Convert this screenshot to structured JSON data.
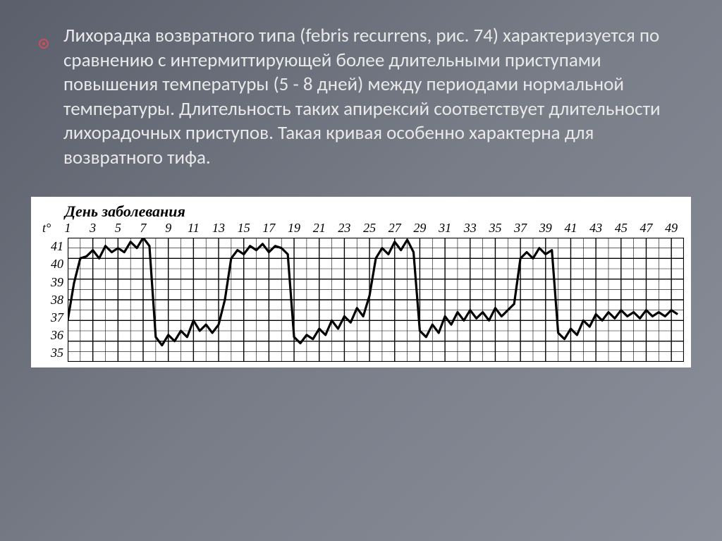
{
  "paragraph": "Лихорадка возвратного типа (febris recurrens, рис. 74) характеризуется по сравнению с интермиттирующей более длительными приступами повышения температуры (5 - 8 дней) между периодами нормальной температуры. Длительность таких апирексий соответствует длительности лихорадочных приступов. Такая кривая особенно характерна для возвратного тифа.",
  "bullet_color": "#c94f60",
  "chart": {
    "title": "День заболевания",
    "t_label": "t°",
    "y_labels": [
      "41",
      "40",
      "39",
      "38",
      "37",
      "36",
      "35"
    ],
    "y_min": 35,
    "y_max": 41,
    "x_labels": [
      "1",
      "3",
      "5",
      "7",
      "9",
      "11",
      "13",
      "15",
      "17",
      "19",
      "21",
      "23",
      "25",
      "27",
      "29",
      "31",
      "33",
      "35",
      "37",
      "39",
      "41",
      "43",
      "45",
      "47",
      "49"
    ],
    "x_min": 1,
    "x_max": 50,
    "grid_color": "#000000",
    "line_color": "#000000",
    "line_width": 3.2,
    "background": "#ffffff",
    "data": [
      [
        1,
        37.0
      ],
      [
        1.5,
        38.8
      ],
      [
        2,
        40.0
      ],
      [
        2.5,
        40.1
      ],
      [
        3,
        40.4
      ],
      [
        3.5,
        40.0
      ],
      [
        4,
        40.6
      ],
      [
        4.5,
        40.3
      ],
      [
        5,
        40.5
      ],
      [
        5.5,
        40.3
      ],
      [
        6,
        40.8
      ],
      [
        6.5,
        40.5
      ],
      [
        7,
        41.0
      ],
      [
        7.5,
        40.6
      ],
      [
        8,
        36.2
      ],
      [
        8.5,
        35.8
      ],
      [
        9,
        36.3
      ],
      [
        9.5,
        36.0
      ],
      [
        10,
        36.5
      ],
      [
        10.5,
        36.2
      ],
      [
        11,
        37.0
      ],
      [
        11.5,
        36.5
      ],
      [
        12,
        36.8
      ],
      [
        12.5,
        36.4
      ],
      [
        13,
        36.8
      ],
      [
        13.5,
        38.0
      ],
      [
        14,
        40.0
      ],
      [
        14.5,
        40.4
      ],
      [
        15,
        40.2
      ],
      [
        15.5,
        40.6
      ],
      [
        16,
        40.4
      ],
      [
        16.5,
        40.7
      ],
      [
        17,
        40.3
      ],
      [
        17.5,
        40.6
      ],
      [
        18,
        40.5
      ],
      [
        18.5,
        40.2
      ],
      [
        19,
        36.2
      ],
      [
        19.5,
        35.9
      ],
      [
        20,
        36.3
      ],
      [
        20.5,
        36.1
      ],
      [
        21,
        36.6
      ],
      [
        21.5,
        36.3
      ],
      [
        22,
        37.0
      ],
      [
        22.5,
        36.6
      ],
      [
        23,
        37.2
      ],
      [
        23.5,
        36.9
      ],
      [
        24,
        37.6
      ],
      [
        24.5,
        37.2
      ],
      [
        25,
        38.2
      ],
      [
        25.5,
        40.0
      ],
      [
        26,
        40.5
      ],
      [
        26.5,
        40.2
      ],
      [
        27,
        40.8
      ],
      [
        27.5,
        40.4
      ],
      [
        28,
        40.9
      ],
      [
        28.5,
        40.3
      ],
      [
        29,
        36.5
      ],
      [
        29.5,
        36.2
      ],
      [
        30,
        36.8
      ],
      [
        30.5,
        36.4
      ],
      [
        31,
        37.2
      ],
      [
        31.5,
        36.8
      ],
      [
        32,
        37.4
      ],
      [
        32.5,
        37.0
      ],
      [
        33,
        37.5
      ],
      [
        33.5,
        37.1
      ],
      [
        34,
        37.4
      ],
      [
        34.5,
        37.0
      ],
      [
        35,
        37.6
      ],
      [
        35.5,
        37.2
      ],
      [
        36,
        37.5
      ],
      [
        36.5,
        37.8
      ],
      [
        37,
        40.0
      ],
      [
        37.5,
        40.3
      ],
      [
        38,
        40.0
      ],
      [
        38.5,
        40.5
      ],
      [
        39,
        40.2
      ],
      [
        39.5,
        40.4
      ],
      [
        40,
        36.4
      ],
      [
        40.5,
        36.1
      ],
      [
        41,
        36.6
      ],
      [
        41.5,
        36.3
      ],
      [
        42,
        37.0
      ],
      [
        42.5,
        36.7
      ],
      [
        43,
        37.3
      ],
      [
        43.5,
        37.0
      ],
      [
        44,
        37.4
      ],
      [
        44.5,
        37.1
      ],
      [
        45,
        37.5
      ],
      [
        45.5,
        37.2
      ],
      [
        46,
        37.4
      ],
      [
        46.5,
        37.1
      ],
      [
        47,
        37.5
      ],
      [
        47.5,
        37.2
      ],
      [
        48,
        37.4
      ],
      [
        48.5,
        37.2
      ],
      [
        49,
        37.5
      ],
      [
        49.5,
        37.3
      ]
    ]
  }
}
